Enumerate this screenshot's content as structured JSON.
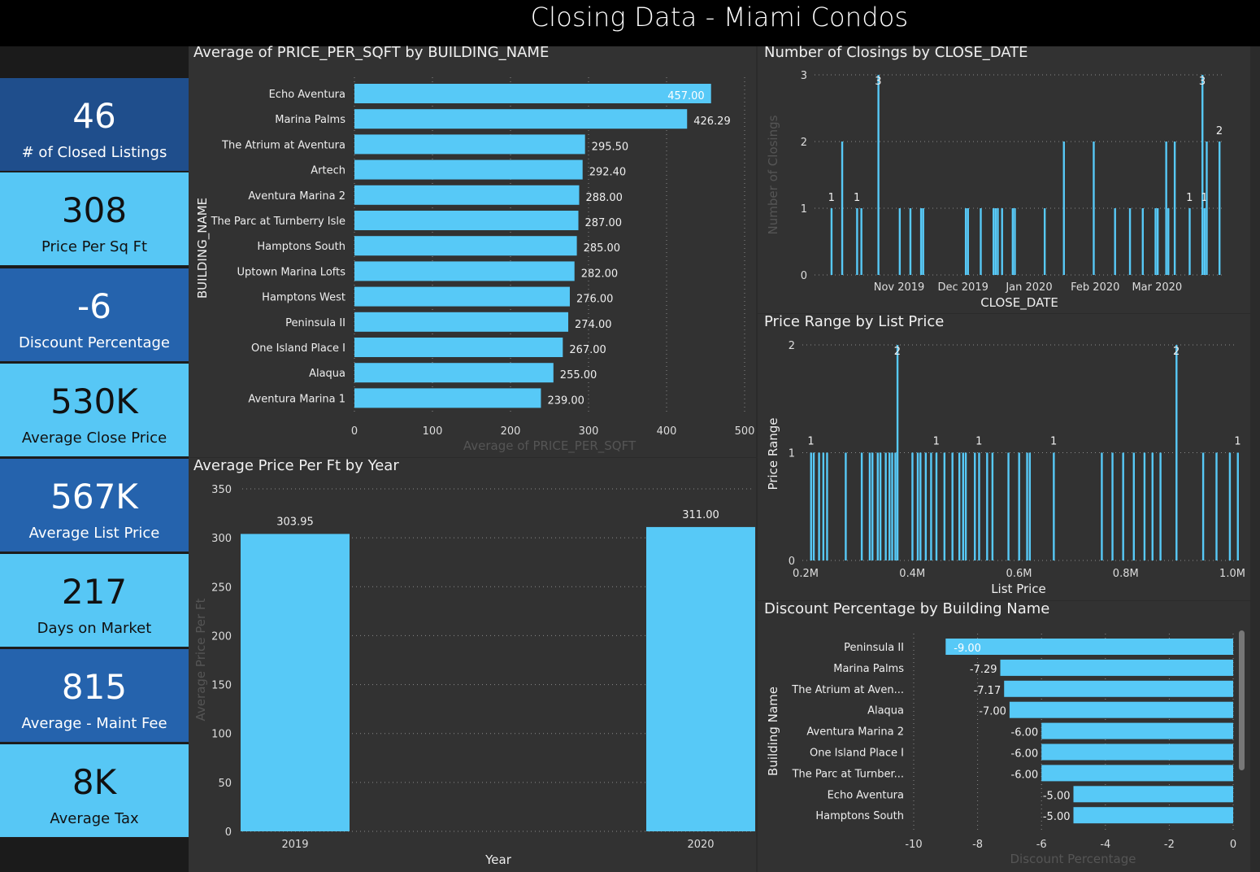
{
  "header": {
    "title": "Closing Data - Miami Condos"
  },
  "kpis": [
    {
      "value": "46",
      "label": "# of Closed Listings"
    },
    {
      "value": "308",
      "label": "Price Per Sq Ft"
    },
    {
      "value": "-6",
      "label": "Discount Percentage"
    },
    {
      "value": "530K",
      "label": "Average Close Price"
    },
    {
      "value": "567K",
      "label": "Average List Price"
    },
    {
      "value": "217",
      "label": "Days on Market"
    },
    {
      "value": "815",
      "label": "Average - Maint Fee"
    },
    {
      "value": "8K",
      "label": "Average Tax"
    }
  ],
  "colors": {
    "bar": "#57c9f7",
    "sidebar_dark": "#2563ad",
    "sidebar_light": "#57c7f5",
    "background": "#2b2b2b"
  },
  "chart_data": [
    {
      "id": "price_per_sqft",
      "type": "bar",
      "orientation": "horizontal",
      "title": "Average of PRICE_PER_SQFT by BUILDING_NAME",
      "xlabel": "Average of PRICE_PER_SQFT",
      "ylabel": "BUILDING_NAME",
      "xlim": [
        0,
        500
      ],
      "xticks": [
        "0",
        "100",
        "200",
        "300",
        "400",
        "500"
      ],
      "categories": [
        "Echo Aventura",
        "Marina Palms",
        "The Atrium at Aventura",
        "Artech",
        "Aventura Marina 2",
        "The Parc at Turnberry Isle",
        "Hamptons South",
        "Uptown Marina Lofts",
        "Hamptons West",
        "Peninsula II",
        "One Island Place I",
        "Alaqua",
        "Aventura Marina 1"
      ],
      "values": [
        457.0,
        426.29,
        295.5,
        292.4,
        288.0,
        287.0,
        285.0,
        282.0,
        276.0,
        274.0,
        267.0,
        255.0,
        239.0
      ],
      "labels": [
        "457.00",
        "426.29",
        "295.50",
        "292.40",
        "288.00",
        "287.00",
        "285.00",
        "282.00",
        "276.00",
        "274.00",
        "267.00",
        "255.00",
        "239.00"
      ]
    },
    {
      "id": "closings_by_date",
      "type": "bar",
      "title": "Number of Closings by CLOSE_DATE",
      "xlabel": "CLOSE_DATE",
      "ylabel": "Number of Closings",
      "ylim": [
        0,
        3
      ],
      "yticks": [
        "0",
        "1",
        "2",
        "3"
      ],
      "xlim": [
        "2019-09-25",
        "2020-03-31"
      ],
      "xticks": [
        {
          "date": "2019-11-01",
          "label": "Nov 2019"
        },
        {
          "date": "2019-12-01",
          "label": "Dec 2019"
        },
        {
          "date": "2020-01-01",
          "label": "Jan 2020"
        },
        {
          "date": "2020-02-01",
          "label": "Feb 2020"
        },
        {
          "date": "2020-03-01",
          "label": "Mar 2020"
        }
      ],
      "points": [
        {
          "x": "2019-10-01",
          "y": 1,
          "label": "1"
        },
        {
          "x": "2019-10-06",
          "y": 2
        },
        {
          "x": "2019-10-13",
          "y": 1,
          "label": "1"
        },
        {
          "x": "2019-10-15",
          "y": 1
        },
        {
          "x": "2019-10-23",
          "y": 3,
          "label": "3"
        },
        {
          "x": "2019-11-02",
          "y": 1
        },
        {
          "x": "2019-11-07",
          "y": 1
        },
        {
          "x": "2019-11-12",
          "y": 1
        },
        {
          "x": "2019-11-13",
          "y": 1
        },
        {
          "x": "2019-12-03",
          "y": 1
        },
        {
          "x": "2019-12-04",
          "y": 1
        },
        {
          "x": "2019-12-10",
          "y": 1
        },
        {
          "x": "2019-12-16",
          "y": 1
        },
        {
          "x": "2019-12-17",
          "y": 1
        },
        {
          "x": "2019-12-18",
          "y": 1
        },
        {
          "x": "2019-12-20",
          "y": 1
        },
        {
          "x": "2019-12-25",
          "y": 1
        },
        {
          "x": "2019-12-26",
          "y": 1
        },
        {
          "x": "2020-01-09",
          "y": 1
        },
        {
          "x": "2020-01-18",
          "y": 2
        },
        {
          "x": "2020-02-01",
          "y": 2
        },
        {
          "x": "2020-02-11",
          "y": 1
        },
        {
          "x": "2020-02-18",
          "y": 1
        },
        {
          "x": "2020-02-24",
          "y": 1
        },
        {
          "x": "2020-03-01",
          "y": 1
        },
        {
          "x": "2020-03-02",
          "y": 1
        },
        {
          "x": "2020-03-06",
          "y": 2
        },
        {
          "x": "2020-03-07",
          "y": 1
        },
        {
          "x": "2020-03-10",
          "y": 2
        },
        {
          "x": "2020-03-17",
          "y": 1,
          "label": "1"
        },
        {
          "x": "2020-03-23",
          "y": 3,
          "label": "3"
        },
        {
          "x": "2020-03-24",
          "y": 1,
          "label": "1"
        },
        {
          "x": "2020-03-25",
          "y": 2
        },
        {
          "x": "2020-03-31",
          "y": 2,
          "label": "2"
        }
      ]
    },
    {
      "id": "price_range",
      "type": "bar",
      "title": "Price Range by List Price",
      "xlabel": "List Price",
      "ylabel": "Price Range",
      "ylim": [
        0,
        2
      ],
      "yticks": [
        "0",
        "1",
        "2"
      ],
      "xlim": [
        200000,
        1010000
      ],
      "xticks": [
        {
          "x": 200000,
          "label": "0.2M"
        },
        {
          "x": 400000,
          "label": "0.4M"
        },
        {
          "x": 600000,
          "label": "0.6M"
        },
        {
          "x": 800000,
          "label": "0.8M"
        },
        {
          "x": 1000000,
          "label": "1.0M"
        }
      ],
      "points": [
        {
          "x": 210000,
          "y": 1,
          "label": "1"
        },
        {
          "x": 215000,
          "y": 1
        },
        {
          "x": 225000,
          "y": 1
        },
        {
          "x": 233000,
          "y": 1
        },
        {
          "x": 240000,
          "y": 1
        },
        {
          "x": 275000,
          "y": 1
        },
        {
          "x": 305000,
          "y": 1
        },
        {
          "x": 320000,
          "y": 1
        },
        {
          "x": 325000,
          "y": 1
        },
        {
          "x": 335000,
          "y": 1
        },
        {
          "x": 340000,
          "y": 1
        },
        {
          "x": 350000,
          "y": 1
        },
        {
          "x": 357000,
          "y": 1
        },
        {
          "x": 362000,
          "y": 1
        },
        {
          "x": 368000,
          "y": 1
        },
        {
          "x": 372000,
          "y": 2,
          "label": "2"
        },
        {
          "x": 400000,
          "y": 1
        },
        {
          "x": 410000,
          "y": 1
        },
        {
          "x": 415000,
          "y": 1
        },
        {
          "x": 425000,
          "y": 1
        },
        {
          "x": 435000,
          "y": 1
        },
        {
          "x": 445000,
          "y": 1,
          "label": "1"
        },
        {
          "x": 460000,
          "y": 1
        },
        {
          "x": 475000,
          "y": 1
        },
        {
          "x": 488000,
          "y": 1
        },
        {
          "x": 495000,
          "y": 1
        },
        {
          "x": 500000,
          "y": 1
        },
        {
          "x": 517000,
          "y": 1
        },
        {
          "x": 525000,
          "y": 1,
          "label": "1"
        },
        {
          "x": 540000,
          "y": 1
        },
        {
          "x": 550000,
          "y": 1
        },
        {
          "x": 580000,
          "y": 1
        },
        {
          "x": 600000,
          "y": 1
        },
        {
          "x": 615000,
          "y": 1
        },
        {
          "x": 620000,
          "y": 1
        },
        {
          "x": 665000,
          "y": 1,
          "label": "1"
        },
        {
          "x": 755000,
          "y": 1
        },
        {
          "x": 775000,
          "y": 1
        },
        {
          "x": 795000,
          "y": 1
        },
        {
          "x": 815000,
          "y": 1
        },
        {
          "x": 835000,
          "y": 1
        },
        {
          "x": 850000,
          "y": 1
        },
        {
          "x": 865000,
          "y": 1
        },
        {
          "x": 895000,
          "y": 2,
          "label": "2"
        },
        {
          "x": 945000,
          "y": 1
        },
        {
          "x": 970000,
          "y": 1
        },
        {
          "x": 995000,
          "y": 1
        },
        {
          "x": 1010000,
          "y": 1,
          "label": "1"
        }
      ]
    },
    {
      "id": "price_by_year",
      "type": "bar",
      "title": "Average Price Per Ft by Year",
      "xlabel": "Year",
      "ylabel": "Average Price Per Ft",
      "ylim": [
        0,
        350
      ],
      "yticks": [
        "0",
        "50",
        "100",
        "150",
        "200",
        "250",
        "300",
        "350"
      ],
      "categories": [
        "2019",
        "2020"
      ],
      "values": [
        303.95,
        311.0
      ],
      "labels": [
        "303.95",
        "311.00"
      ]
    },
    {
      "id": "discount_by_building",
      "type": "bar",
      "orientation": "horizontal",
      "title": "Discount Percentage by Building Name",
      "xlabel": "Discount Percentage",
      "ylabel": "Building Name",
      "xlim": [
        -10,
        0
      ],
      "xticks": [
        "-10",
        "-8",
        "-6",
        "-4",
        "-2",
        "0"
      ],
      "categories": [
        "Peninsula II",
        "Marina Palms",
        "The Atrium at Aven...",
        "Alaqua",
        "Aventura Marina 2",
        "One Island Place I",
        "The Parc at Turnber...",
        "Echo Aventura",
        "Hamptons South"
      ],
      "values": [
        -9.0,
        -7.29,
        -7.17,
        -7.0,
        -6.0,
        -6.0,
        -6.0,
        -5.0,
        -5.0
      ],
      "labels": [
        "-9.00",
        "-7.29",
        "-7.17",
        "-7.00",
        "-6.00",
        "-6.00",
        "-6.00",
        "-5.00",
        "-5.00"
      ]
    }
  ]
}
